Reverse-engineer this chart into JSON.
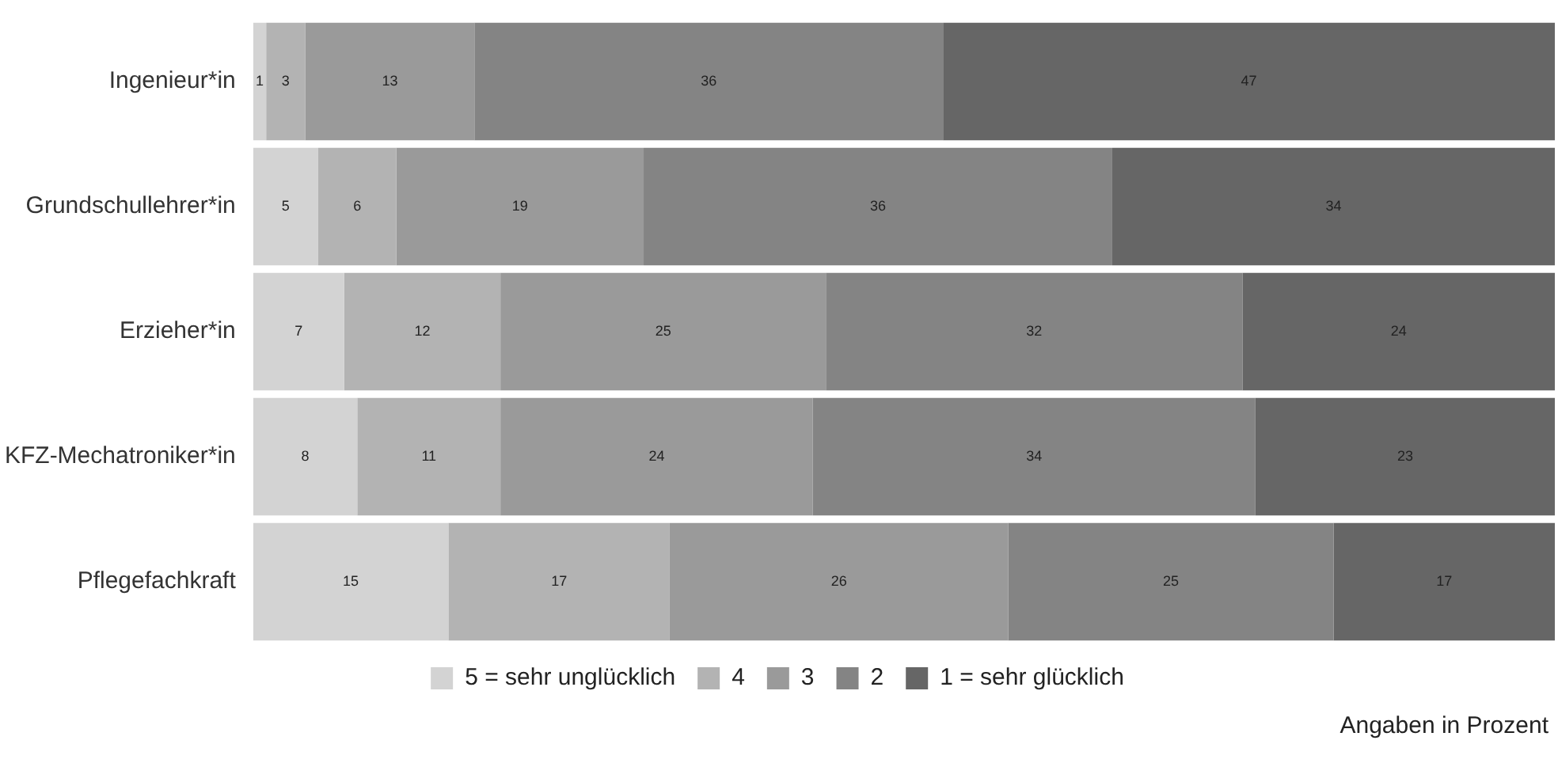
{
  "chart_data": {
    "type": "bar",
    "orientation": "horizontal",
    "stacked": true,
    "categories": [
      "Ingenieur*in",
      "Grundschullehrer*in",
      "Erzieher*in",
      "KFZ-Mechatroniker*in",
      "Pflegefachkraft"
    ],
    "series": [
      {
        "name": "5 = sehr unglücklich",
        "color": "#d3d3d3",
        "values": [
          1,
          5,
          7,
          8,
          15
        ]
      },
      {
        "name": "4",
        "color": "#b3b3b3",
        "values": [
          3,
          6,
          12,
          11,
          17
        ]
      },
      {
        "name": "3",
        "color": "#9a9a9a",
        "values": [
          13,
          19,
          25,
          24,
          26
        ]
      },
      {
        "name": "2",
        "color": "#848484",
        "values": [
          36,
          36,
          32,
          34,
          25
        ]
      },
      {
        "name": "1 = sehr glücklich",
        "color": "#666666",
        "values": [
          47,
          34,
          24,
          23,
          17
        ]
      }
    ],
    "xlim": [
      0,
      100
    ],
    "data_labels": true,
    "legend": "bottom",
    "grid": false,
    "tick_labels": "y",
    "annotations": [
      "Angaben in Prozent"
    ]
  }
}
